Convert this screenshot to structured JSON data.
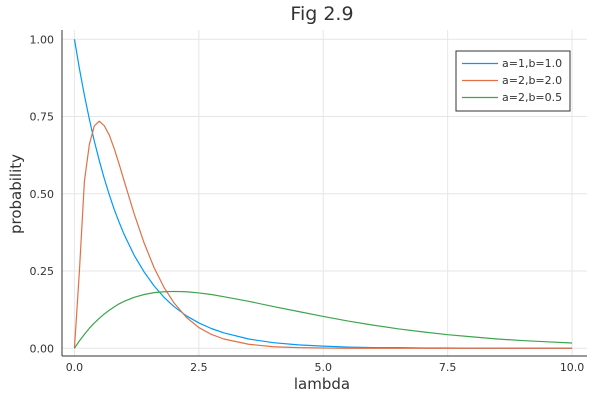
{
  "chart_data": {
    "type": "line",
    "title": "Fig 2.9",
    "xlabel": "lambda",
    "ylabel": "probability",
    "xlim": [
      -0.25,
      10.3
    ],
    "ylim": [
      -0.025,
      1.03
    ],
    "xticks": [
      0.0,
      2.5,
      5.0,
      7.5,
      10.0
    ],
    "xtick_labels": [
      "0.0",
      "2.5",
      "5.0",
      "7.5",
      "10.0"
    ],
    "yticks": [
      0.0,
      0.25,
      0.5,
      0.75,
      1.0
    ],
    "ytick_labels": [
      "0.00",
      "0.25",
      "0.50",
      "0.75",
      "1.00"
    ],
    "grid": true,
    "legend_position": "top-right",
    "x": [
      0,
      0.1,
      0.2,
      0.3,
      0.4,
      0.5,
      0.6,
      0.7,
      0.8,
      0.9,
      1.0,
      1.2,
      1.4,
      1.6,
      1.8,
      2.0,
      2.25,
      2.5,
      2.75,
      3.0,
      3.5,
      4.0,
      4.5,
      5.0,
      5.5,
      6.0,
      6.5,
      7.0,
      7.5,
      8.0,
      8.5,
      9.0,
      9.5,
      10.0
    ],
    "series": [
      {
        "name": "a=1,b=1.0",
        "color": "#009AF9",
        "values": [
          1.0,
          0.905,
          0.819,
          0.741,
          0.67,
          0.607,
          0.549,
          0.497,
          0.449,
          0.407,
          0.368,
          0.301,
          0.247,
          0.202,
          0.165,
          0.135,
          0.105,
          0.082,
          0.064,
          0.05,
          0.03,
          0.018,
          0.011,
          0.007,
          0.004,
          0.002,
          0.002,
          0.001,
          0.001,
          0.0,
          0.0,
          0.0,
          0.0,
          0.0
        ]
      },
      {
        "name": "a=2,b=2.0",
        "color": "#E26F46",
        "values": [
          0.0,
          0.25,
          0.54,
          0.66,
          0.72,
          0.735,
          0.72,
          0.69,
          0.646,
          0.595,
          0.541,
          0.435,
          0.341,
          0.261,
          0.197,
          0.147,
          0.1,
          0.067,
          0.045,
          0.03,
          0.013,
          0.005,
          0.002,
          0.001,
          0.0,
          0.0,
          0.0,
          0.0,
          0.0,
          0.0,
          0.0,
          0.0,
          0.0,
          0.0
        ]
      },
      {
        "name": "a=2,b=0.5",
        "color": "#3EA44E",
        "values": [
          0.0,
          0.024,
          0.045,
          0.065,
          0.082,
          0.097,
          0.111,
          0.123,
          0.134,
          0.144,
          0.152,
          0.165,
          0.174,
          0.18,
          0.183,
          0.184,
          0.183,
          0.179,
          0.174,
          0.167,
          0.152,
          0.135,
          0.119,
          0.103,
          0.088,
          0.075,
          0.063,
          0.053,
          0.044,
          0.037,
          0.03,
          0.025,
          0.021,
          0.017
        ]
      }
    ]
  }
}
